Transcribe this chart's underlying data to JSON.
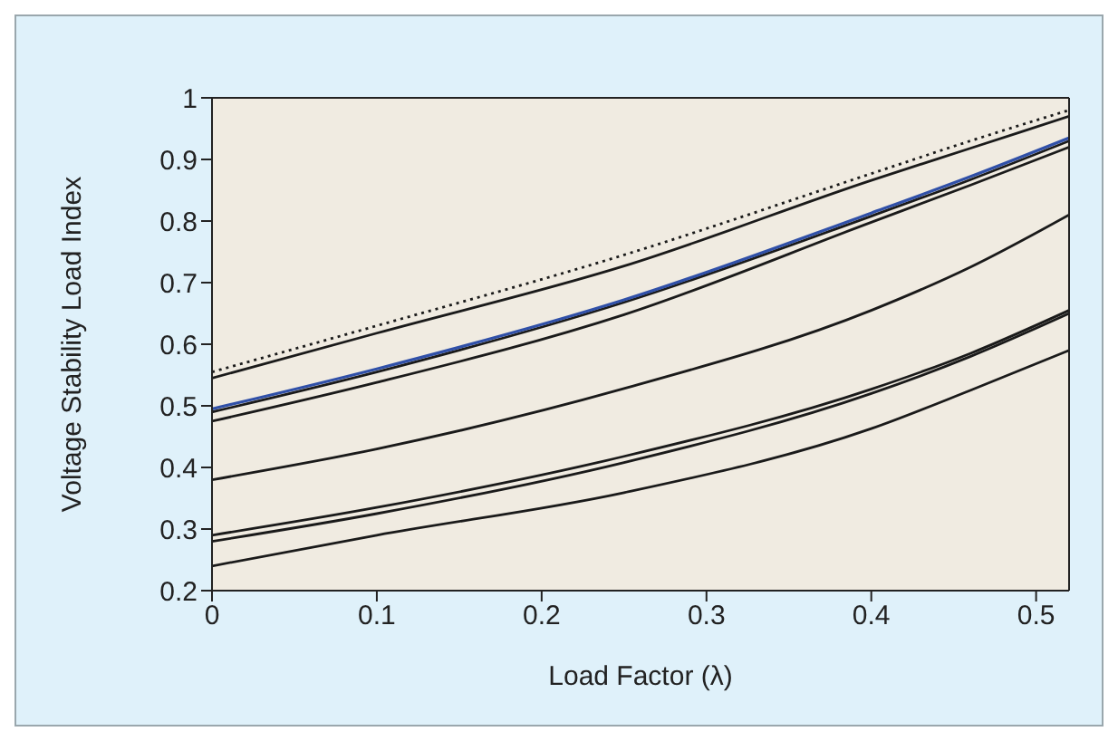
{
  "chart_data": {
    "type": "line",
    "xlabel": "Load Factor (λ)",
    "ylabel": "Voltage Stability Load Index",
    "x": [
      0,
      0.1,
      0.25,
      0.4,
      0.46,
      0.52
    ],
    "xlim": [
      0,
      0.52
    ],
    "xticks": [
      0,
      0.1,
      0.2,
      0.3,
      0.4,
      0.5
    ],
    "ylim": [
      0.2,
      1
    ],
    "yticks": [
      0.2,
      0.3,
      0.4,
      0.5,
      0.6,
      0.7,
      0.8,
      0.9,
      1
    ],
    "grid": false,
    "legend": false,
    "marker": "none",
    "series": [
      {
        "color": "#1a1a1a",
        "line_style": "dotted",
        "values": [
          0.555,
          0.63,
          0.745,
          0.877,
          0.93,
          0.98
        ]
      },
      {
        "color": "#1a1a1a",
        "line_style": "solid",
        "values": [
          0.545,
          0.618,
          0.727,
          0.866,
          0.918,
          0.97
        ]
      },
      {
        "color": "#1a1a1a",
        "line_style": "solid",
        "values": [
          0.49,
          0.555,
          0.668,
          0.808,
          0.867,
          0.93
        ]
      },
      {
        "color": "#3050a8",
        "line_style": "solid",
        "values": [
          0.495,
          0.56,
          0.672,
          0.813,
          0.872,
          0.935
        ]
      },
      {
        "color": "#1a1a1a",
        "line_style": "solid",
        "values": [
          0.475,
          0.538,
          0.648,
          0.798,
          0.858,
          0.92
        ]
      },
      {
        "color": "#1a1a1a",
        "line_style": "solid",
        "values": [
          0.38,
          0.43,
          0.528,
          0.655,
          0.725,
          0.81
        ]
      },
      {
        "color": "#1a1a1a",
        "line_style": "solid",
        "values": [
          0.29,
          0.335,
          0.418,
          0.527,
          0.585,
          0.655
        ]
      },
      {
        "color": "#1a1a1a",
        "line_style": "solid",
        "values": [
          0.28,
          0.325,
          0.408,
          0.52,
          0.58,
          0.65
        ]
      },
      {
        "color": "#1a1a1a",
        "line_style": "solid",
        "values": [
          0.24,
          0.29,
          0.359,
          0.463,
          0.525,
          0.59
        ]
      }
    ]
  }
}
